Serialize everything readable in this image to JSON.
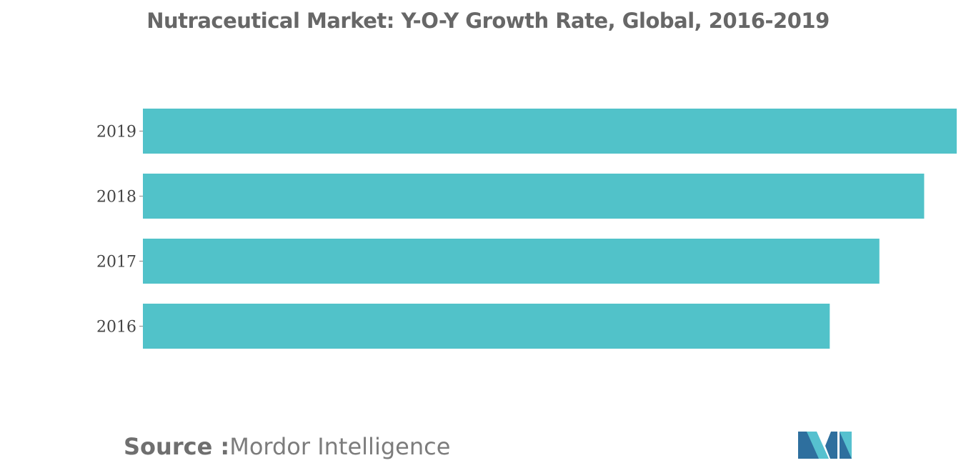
{
  "title": "Nutraceutical Market: Y-O-Y Growth Rate, Global, 2016-2019",
  "source": {
    "label": "Source :",
    "name": "Mordor Intelligence"
  },
  "colors": {
    "bar": "#51c2c9",
    "title": "#676767",
    "label": "#444444",
    "logo_dark": "#2e6f9e",
    "logo_light": "#56c1cf"
  },
  "logo": {
    "name": "mordor-intelligence-logo"
  },
  "chart_data": {
    "type": "bar",
    "orientation": "horizontal",
    "categories": [
      "2019",
      "2018",
      "2017",
      "2016"
    ],
    "values": [
      100,
      96,
      90.5,
      84.4
    ],
    "xlabel": "",
    "ylabel": "",
    "xlim": [
      0,
      100
    ],
    "grid": false,
    "legend": "none",
    "value_axis_shown": false
  }
}
